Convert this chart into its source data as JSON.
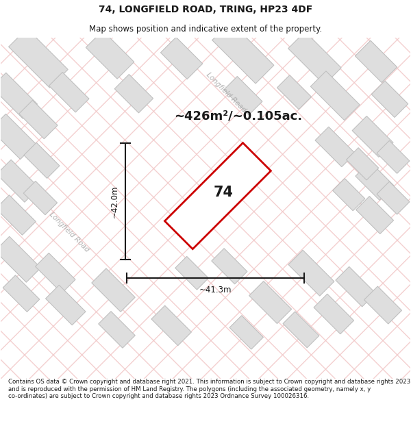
{
  "title": "74, LONGFIELD ROAD, TRING, HP23 4DF",
  "subtitle": "Map shows position and indicative extent of the property.",
  "area_text": "~426m²/~0.105ac.",
  "label_74": "74",
  "dim_height": "~42.0m",
  "dim_width": "~41.3m",
  "road_label_upper": "Longfield Road",
  "road_label_lower": "Longfield Road",
  "footer": "Contains OS data © Crown copyright and database right 2021. This information is subject to Crown copyright and database rights 2023 and is reproduced with the permission of HM Land Registry. The polygons (including the associated geometry, namely x, y co-ordinates) are subject to Crown copyright and database rights 2023 Ordnance Survey 100026316.",
  "bg_color": "#ffffff",
  "map_bg": "#efefef",
  "plot_fill": "#ffffff",
  "plot_stroke": "#cc0000",
  "building_fill": "#dedede",
  "building_stroke": "#c0c0c0",
  "road_color": "#f2c8c8",
  "dim_color": "#1a1a1a",
  "text_color": "#1a1a1a",
  "road_text_color": "#b0b0b0"
}
